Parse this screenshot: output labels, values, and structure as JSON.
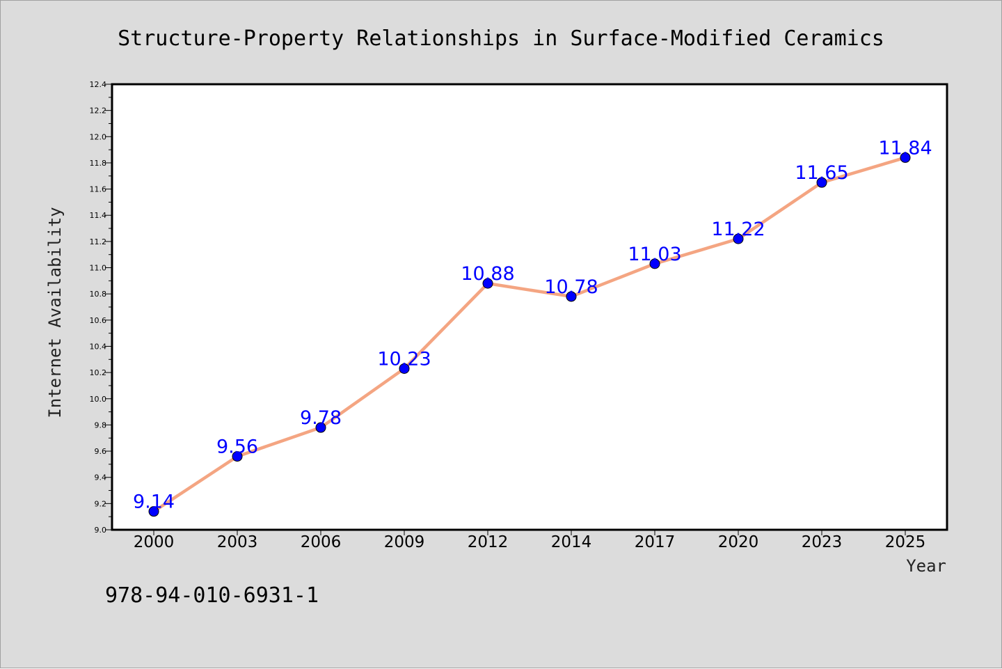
{
  "chart_data": {
    "type": "line",
    "title": "Structure-Property Relationships in Surface-Modified Ceramics",
    "xlabel": "Year",
    "ylabel": "Internet Availability",
    "categories": [
      "2000",
      "2003",
      "2006",
      "2009",
      "2012",
      "2014",
      "2017",
      "2020",
      "2023",
      "2025"
    ],
    "series": [
      {
        "values": [
          9.14,
          9.56,
          9.78,
          10.23,
          10.88,
          10.78,
          11.03,
          11.22,
          11.65,
          11.84
        ],
        "labels": [
          "9.14",
          "9.56",
          "9.78",
          "10.23",
          "10.88",
          "10.78",
          "11.03",
          "11.22",
          "11.65",
          "11.84"
        ],
        "line_color": "#f4a582",
        "marker_color": "#0000ff"
      }
    ],
    "ylim": [
      9.0,
      12.4
    ],
    "yticks": [
      "9.0",
      "9.2",
      "9.4",
      "9.6",
      "9.8",
      "10.0",
      "10.2",
      "10.4",
      "10.6",
      "10.8",
      "11.0",
      "11.2",
      "11.4",
      "11.6",
      "11.8",
      "12.0",
      "12.2",
      "12.4"
    ],
    "grid": false
  },
  "footer_text": "978-94-010-6931-1",
  "colors": {
    "background": "#dcdcdc",
    "plot_area": "#ffffff"
  }
}
